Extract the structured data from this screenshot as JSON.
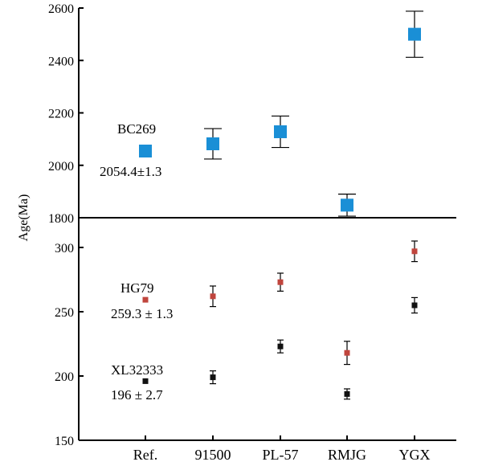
{
  "chart_data": [
    {
      "type": "scatter",
      "panel": "top",
      "categories": [
        "Ref.",
        "91500",
        "PL-57",
        "RMJG",
        "YGX"
      ],
      "ylabel": "Age(Ma)",
      "ylim": [
        1800,
        2600
      ],
      "yticks": [
        1800,
        2000,
        2200,
        2400,
        2600
      ],
      "series": [
        {
          "color": "#1a8fd6",
          "marker": "square-large",
          "points": [
            {
              "category": "Ref.",
              "y": 2054.4,
              "err": 0
            },
            {
              "category": "91500",
              "y": 2082,
              "err": 58
            },
            {
              "category": "PL-57",
              "y": 2128,
              "err": 60
            },
            {
              "category": "RMJG",
              "y": 1848,
              "err": 42
            },
            {
              "category": "YGX",
              "y": 2500,
              "err": 88
            }
          ]
        }
      ],
      "annotations": [
        {
          "id": "bc-name",
          "text": "BC269"
        },
        {
          "id": "bc-age",
          "text": "2054.4±1.3"
        }
      ]
    },
    {
      "type": "scatter",
      "panel": "bottom",
      "categories": [
        "Ref.",
        "91500",
        "PL-57",
        "RMJG",
        "YGX"
      ],
      "ylim": [
        150,
        300
      ],
      "yticks": [
        150,
        200,
        250,
        300
      ],
      "series": [
        {
          "color": "#c0453d",
          "marker": "square-small",
          "points": [
            {
              "category": "Ref.",
              "y": 259.3,
              "err": 0
            },
            {
              "category": "91500",
              "y": 262,
              "err": 8
            },
            {
              "category": "PL-57",
              "y": 273,
              "err": 7
            },
            {
              "category": "RMJG",
              "y": 218,
              "err": 9
            },
            {
              "category": "YGX",
              "y": 297,
              "err": 8
            }
          ]
        },
        {
          "color": "#111111",
          "marker": "square-small",
          "points": [
            {
              "category": "Ref.",
              "y": 196,
              "err": 0
            },
            {
              "category": "91500",
              "y": 199,
              "err": 5
            },
            {
              "category": "PL-57",
              "y": 223,
              "err": 5
            },
            {
              "category": "RMJG",
              "y": 186,
              "err": 4
            },
            {
              "category": "YGX",
              "y": 255,
              "err": 6
            }
          ]
        }
      ],
      "annotations": [
        {
          "id": "hg-name",
          "text": "HG79"
        },
        {
          "id": "hg-age",
          "text": "259.3 ± 1.3"
        },
        {
          "id": "xl-name",
          "text": "XL32333"
        },
        {
          "id": "xl-age",
          "text": "196 ± 2.7"
        }
      ]
    }
  ]
}
